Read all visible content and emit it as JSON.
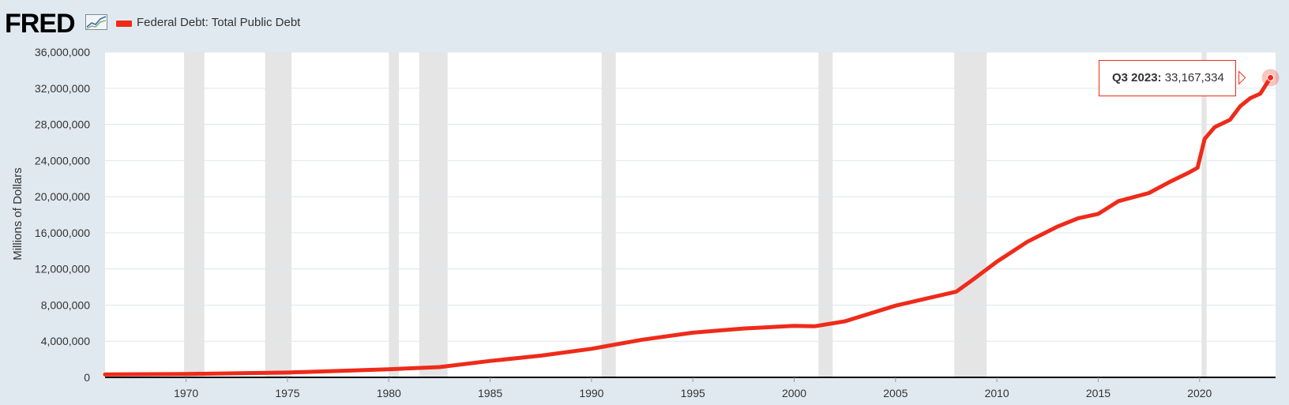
{
  "brand": {
    "logo_text": "FRED",
    "logo_icon": "line-graph-icon"
  },
  "legend": {
    "label": "Federal Debt: Total Public Debt",
    "color": "#ee2b1a"
  },
  "tooltip": {
    "period": "Q3 2023:",
    "value": "33,167,334"
  },
  "chart_data": {
    "type": "line",
    "title": "",
    "series": [
      {
        "name": "Federal Debt: Total Public Debt",
        "color": "#ee2b1a",
        "x": [
          1966.0,
          1970.0,
          1975.0,
          1980.0,
          1982.5,
          1985.0,
          1987.5,
          1990.0,
          1992.5,
          1995.0,
          1997.5,
          2000.0,
          2001.0,
          2002.5,
          2005.0,
          2007.0,
          2008.0,
          2008.75,
          2010.0,
          2011.5,
          2013.0,
          2014.0,
          2015.0,
          2016.0,
          2017.5,
          2018.5,
          2019.5,
          2019.9,
          2020.25,
          2020.75,
          2021.5,
          2022.0,
          2022.5,
          2023.0,
          2023.25,
          2023.5
        ],
        "values": [
          320000,
          380000,
          530000,
          900000,
          1140000,
          1820000,
          2400000,
          3160000,
          4170000,
          4950000,
          5410000,
          5700000,
          5650000,
          6200000,
          7930000,
          8970000,
          9490000,
          10700000,
          12800000,
          15000000,
          16700000,
          17600000,
          18100000,
          19500000,
          20400000,
          21600000,
          22700000,
          23200000,
          26400000,
          27700000,
          28500000,
          30000000,
          30900000,
          31400000,
          32300000,
          33167334
        ]
      }
    ],
    "xlim": [
      1966,
      2023.75
    ],
    "ylim": [
      0,
      36000000
    ],
    "x_ticks": [
      "1970",
      "1975",
      "1980",
      "1985",
      "1990",
      "1995",
      "2000",
      "2005",
      "2010",
      "2015",
      "2020"
    ],
    "y_ticks": [
      "0",
      "4,000,000",
      "8,000,000",
      "12,000,000",
      "16,000,000",
      "20,000,000",
      "24,000,000",
      "28,000,000",
      "32,000,000",
      "36,000,000"
    ],
    "ylabel": "Millions of Dollars",
    "xlabel": "",
    "grid": true,
    "legend_position": "top-left",
    "recessions": [
      [
        1969.9,
        1970.9
      ],
      [
        1973.9,
        1975.2
      ],
      [
        1980.0,
        1980.5
      ],
      [
        1981.5,
        1982.9
      ],
      [
        1990.5,
        1991.2
      ],
      [
        2001.2,
        2001.9
      ],
      [
        2007.9,
        2009.5
      ],
      [
        2020.1,
        2020.35
      ]
    ]
  }
}
